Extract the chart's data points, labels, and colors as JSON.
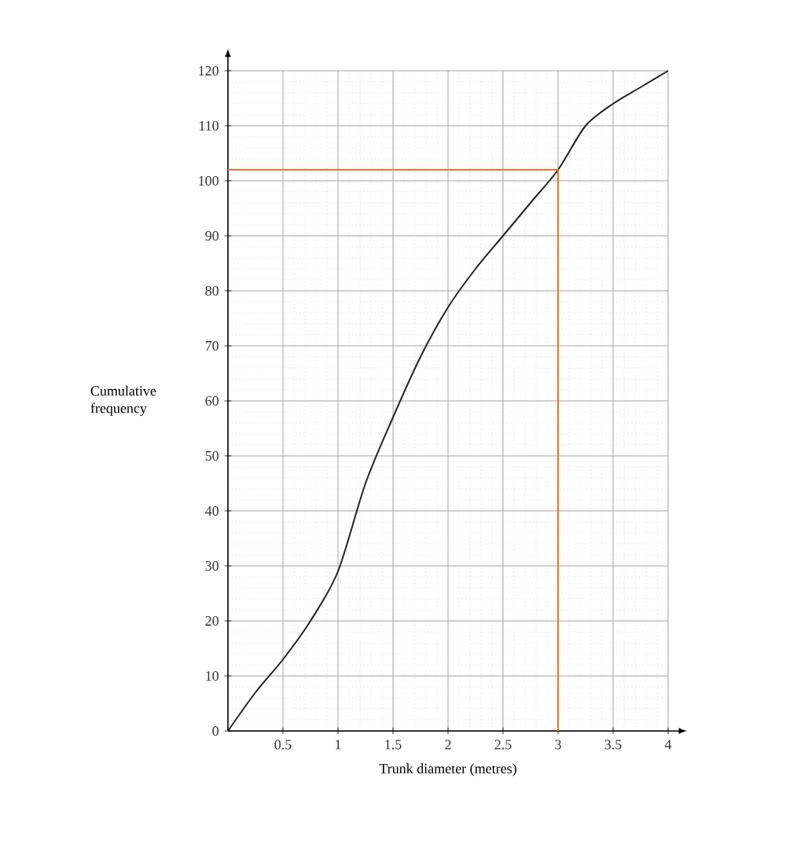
{
  "chart_data": {
    "type": "line",
    "xlabel": "Trunk diameter (metres)",
    "ylabel": "Cumulative frequency",
    "xlim": [
      0,
      4
    ],
    "ylim": [
      0,
      120
    ],
    "xticks": [
      0.5,
      1,
      1.5,
      2,
      2.5,
      3,
      3.5,
      4
    ],
    "yticks": [
      0,
      10,
      20,
      30,
      40,
      50,
      60,
      70,
      80,
      90,
      100,
      110,
      120
    ],
    "grid": true,
    "series": [
      {
        "color": "#222222",
        "x": [
          0,
          0.25,
          0.5,
          0.75,
          1,
          1.25,
          1.5,
          1.75,
          2,
          2.25,
          2.5,
          2.75,
          3,
          3.25,
          3.5,
          3.75,
          4
        ],
        "values": [
          0,
          7,
          13,
          20,
          29,
          45,
          57,
          68,
          77,
          84,
          90,
          96,
          102,
          110,
          114,
          117,
          120
        ]
      },
      {
        "color": "#e8742a",
        "x": [
          0,
          3,
          3
        ],
        "values": [
          102,
          102,
          0
        ]
      }
    ]
  }
}
